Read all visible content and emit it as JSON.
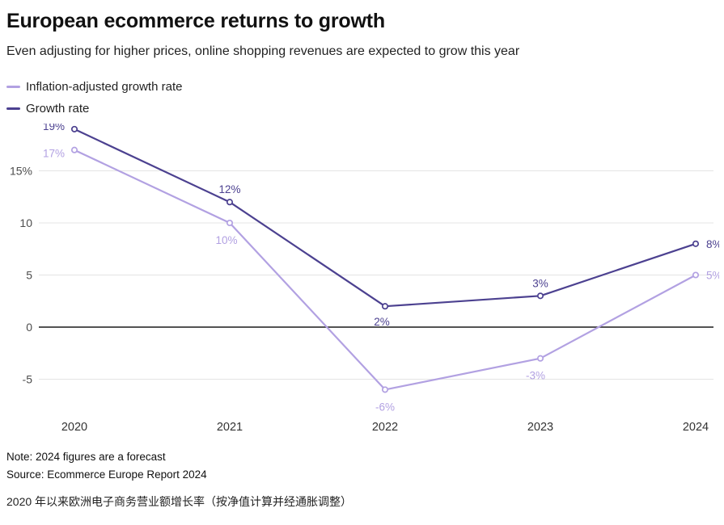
{
  "header": {
    "title": "European ecommerce returns to growth",
    "subtitle": "Even adjusting for higher prices, online shopping revenues are expected to grow this year"
  },
  "legend": [
    {
      "label": "Inflation-adjusted growth rate",
      "color": "#b2a1e2"
    },
    {
      "label": "Growth rate",
      "color": "#4c4190"
    }
  ],
  "chart_data": {
    "type": "line",
    "x": [
      "2020",
      "2021",
      "2022",
      "2023",
      "2024"
    ],
    "series": [
      {
        "name": "Growth rate",
        "color": "#4c4190",
        "values": [
          19,
          12,
          2,
          3,
          8
        ],
        "labels": [
          "19%",
          "12%",
          "2%",
          "3%",
          "8%"
        ]
      },
      {
        "name": "Inflation-adjusted growth rate",
        "color": "#b2a1e2",
        "values": [
          17,
          10,
          -6,
          -3,
          5
        ],
        "labels": [
          "17%",
          "10%",
          "-6%",
          "-3%",
          "5%"
        ]
      }
    ],
    "yticks": [
      {
        "v": 15,
        "label": "15%"
      },
      {
        "v": 10,
        "label": "10"
      },
      {
        "v": 5,
        "label": "5"
      },
      {
        "v": 0,
        "label": "0"
      },
      {
        "v": -5,
        "label": "-5"
      }
    ],
    "ylim": [
      -9,
      21
    ],
    "grid": true,
    "legend_position": "top-left",
    "title": "European ecommerce returns to growth",
    "xlabel": "",
    "ylabel": ""
  },
  "footer": {
    "note": "Note: 2024 figures are a forecast",
    "source": "Source: Ecommerce Europe Report 2024",
    "caption_zh": "2020 年以来欧洲电子商务营业额增长率（按净值计算并经通胀调整）"
  }
}
